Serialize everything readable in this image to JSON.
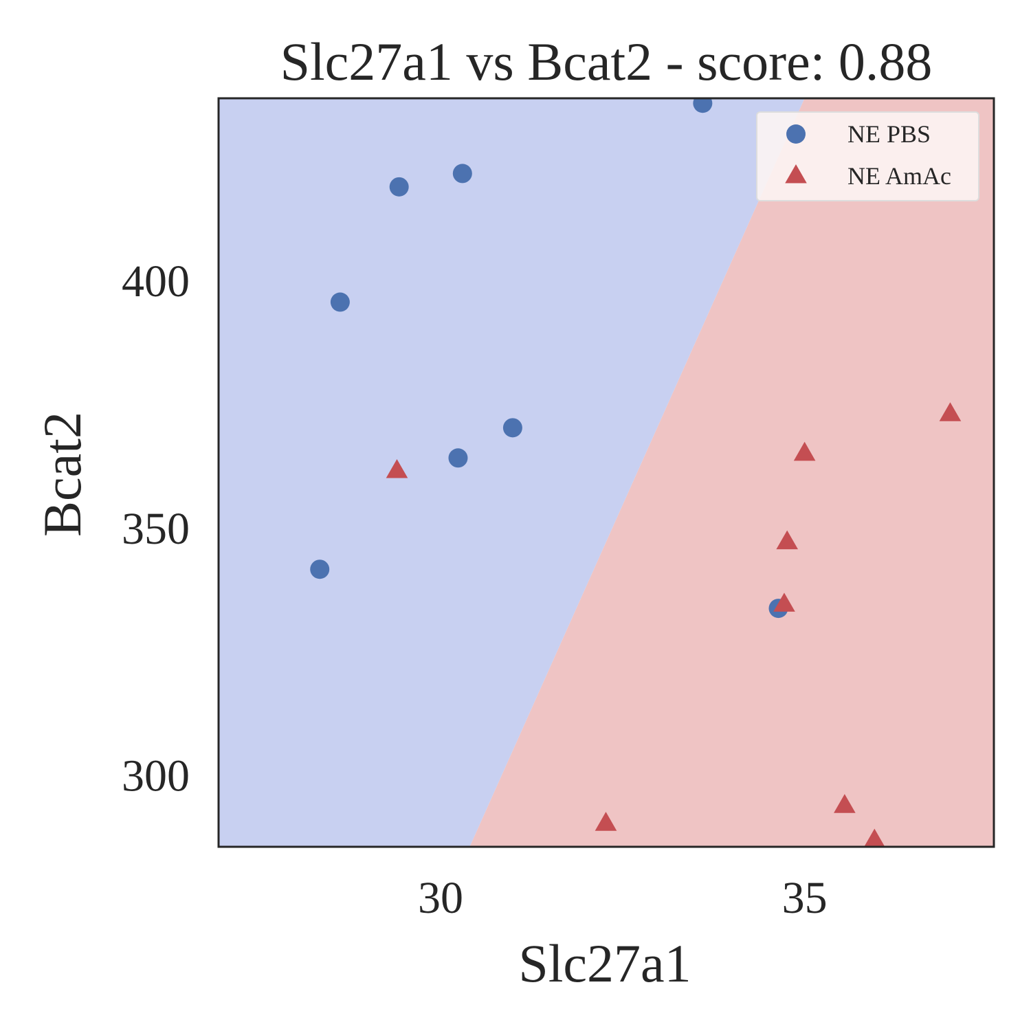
{
  "chart_data": {
    "type": "scatter",
    "title": "Slc27a1 vs Bcat2 - score: 0.88",
    "xlabel": "Slc27a1",
    "ylabel": "Bcat2",
    "xlim": [
      26.95,
      37.6
    ],
    "ylim": [
      285.5,
      436.8
    ],
    "xticks": [
      30,
      35
    ],
    "yticks": [
      300,
      350,
      400
    ],
    "grid": false,
    "legend_position": "top-right",
    "decision_boundary": [
      [
        30.4,
        285.5
      ],
      [
        35.0,
        436.8
      ]
    ],
    "region_colors": {
      "left": "#c8d0f1",
      "right": "#efc4c4"
    },
    "series": [
      {
        "name": "NE PBS",
        "marker": "circle",
        "color": "#4c72b0",
        "points": [
          [
            33.6,
            435.8
          ],
          [
            30.3,
            421.6
          ],
          [
            29.43,
            418.9
          ],
          [
            28.62,
            395.6
          ],
          [
            30.99,
            370.2
          ],
          [
            30.24,
            364.1
          ],
          [
            28.34,
            341.6
          ],
          [
            34.64,
            333.7
          ]
        ]
      },
      {
        "name": "NE AmAc",
        "marker": "triangle",
        "color": "#c44e52",
        "points": [
          [
            29.4,
            361.5
          ],
          [
            35.0,
            365.0
          ],
          [
            37.0,
            373.0
          ],
          [
            34.76,
            347.1
          ],
          [
            34.72,
            334.5
          ],
          [
            35.55,
            293.8
          ],
          [
            32.27,
            290.2
          ],
          [
            35.96,
            286.8
          ]
        ]
      }
    ]
  }
}
